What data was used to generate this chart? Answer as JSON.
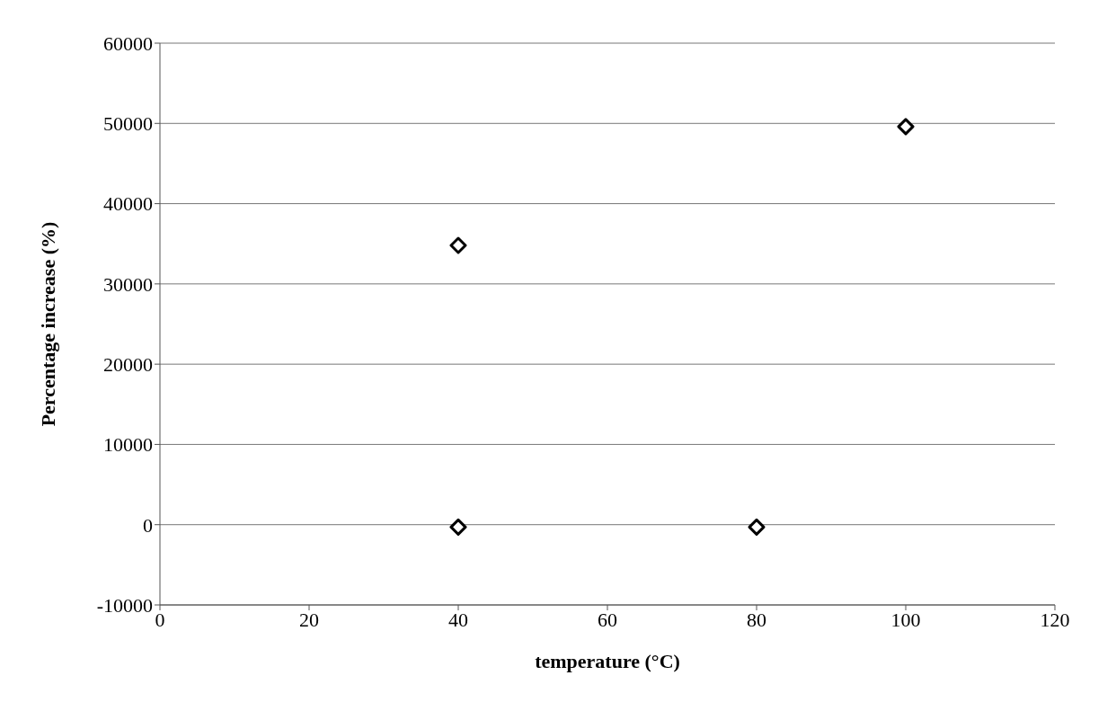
{
  "chart_data": {
    "type": "scatter",
    "xlabel": "temperature (°C)",
    "ylabel": "Percentage increase (%)",
    "x": [
      40,
      40,
      80,
      100
    ],
    "values": [
      34800,
      -300,
      -300,
      49600
    ],
    "color": "#000000",
    "marker": "diamond",
    "xlim": [
      0,
      120
    ],
    "xticks": [
      0,
      20,
      40,
      60,
      80,
      100,
      120
    ],
    "ylim": [
      -10000,
      60000
    ],
    "yticks": [
      -10000,
      0,
      10000,
      20000,
      30000,
      40000,
      50000,
      60000
    ],
    "grid": "y",
    "legend": false
  }
}
